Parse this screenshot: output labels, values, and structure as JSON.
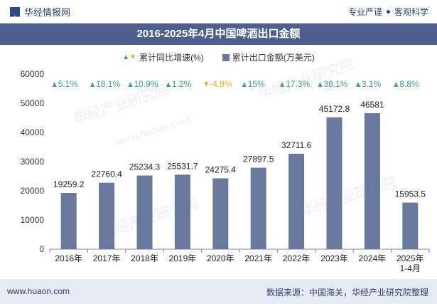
{
  "header": {
    "brand": "华经情报网",
    "brand_icon": "huajing-logo-icon",
    "tagline_left": "专业严谨",
    "tagline_right": "客观科学"
  },
  "title": "2016-2025年4月中国啤酒出口金额",
  "legend": {
    "growth_label": "累计同比增速(%)",
    "amount_label": "累计出口金额(万美元)"
  },
  "watermark": "华经产业研究院",
  "watermark_url": "www.huaon.com",
  "footer": {
    "url": "www.huaon.com",
    "source": "数据来源：中国海关，华经产业研究院整理"
  },
  "colors": {
    "bar": "#69799e",
    "up": "#3aa29a",
    "down": "#e8b21b",
    "title_bg": "#4d5f8e"
  },
  "chart_data": {
    "type": "bar",
    "categories": [
      "2016年",
      "2017年",
      "2018年",
      "2019年",
      "2020年",
      "2021年",
      "2022年",
      "2023年",
      "2024年",
      "2025年\n1-4月"
    ],
    "series": [
      {
        "name": "累计出口金额(万美元)",
        "values": [
          19259.2,
          22760.4,
          25234.3,
          25531.7,
          24275.4,
          27897.5,
          32711.6,
          45172.8,
          46581,
          15953.5
        ],
        "labels": [
          "19259.2",
          "22760.4",
          "25234.3",
          "25531.7",
          "24275.4",
          "27897.5",
          "32711.6",
          "45172.8",
          "46581",
          "15953.5"
        ]
      },
      {
        "name": "累计同比增速(%)",
        "values": [
          5.1,
          18.1,
          10.9,
          1.2,
          -4.9,
          15,
          17.3,
          38.1,
          3.1,
          8.8
        ],
        "labels": [
          "5.1%",
          "18.1%",
          "10.9%",
          "1.2%",
          "-4.9%",
          "15%",
          "17.3%",
          "38.1%",
          "3.1%",
          "8.8%"
        ]
      }
    ],
    "ylim": [
      0,
      60000
    ],
    "yticks": [
      "0",
      "10000",
      "20000",
      "30000",
      "40000",
      "50000",
      "60000"
    ],
    "ytick_values": [
      0,
      10000,
      20000,
      30000,
      40000,
      50000,
      60000
    ],
    "grid": false
  }
}
